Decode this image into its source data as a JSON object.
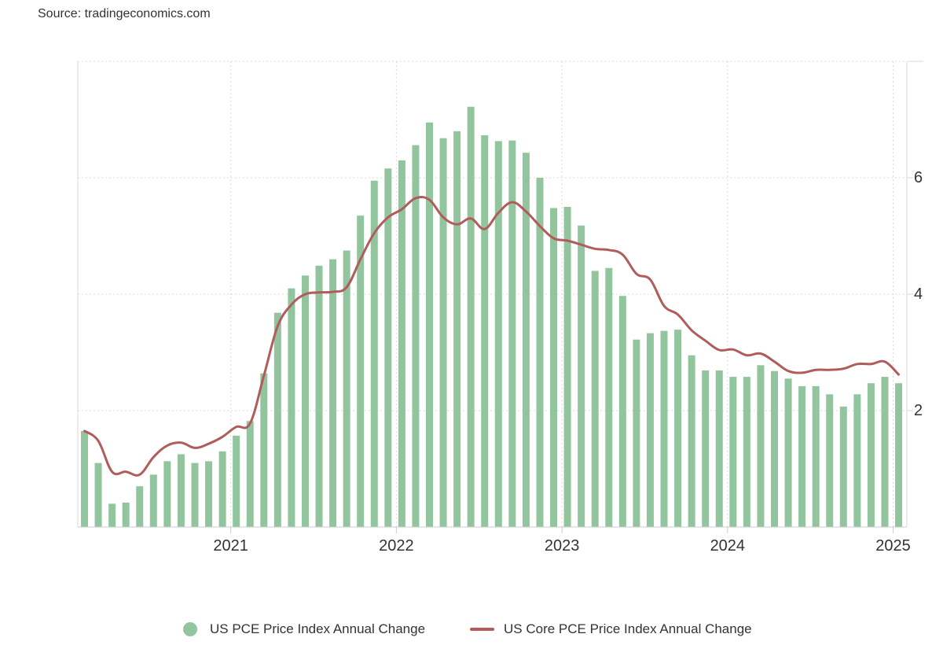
{
  "source": "Source: tradingeconomics.com",
  "colors": {
    "pce": "#92c59d",
    "core": "#b05c5c",
    "grid": "#d9d9d9",
    "axis": "#cccccc"
  },
  "legend": {
    "pce_label": "US PCE Price Index Annual Change",
    "core_label": "US Core PCE Price Index Annual Change"
  },
  "chart_data": {
    "type": "bar",
    "title": "",
    "xlabel": "",
    "ylabel": "",
    "ylim": [
      0,
      8
    ],
    "grid": true,
    "legend_position": "bottom",
    "x_ticks": [
      "2021",
      "2022",
      "2023",
      "2024",
      "2025"
    ],
    "y_ticks": [
      "2",
      "4",
      "6"
    ],
    "categories": [
      "2020-02",
      "2020-03",
      "2020-04",
      "2020-05",
      "2020-06",
      "2020-07",
      "2020-08",
      "2020-09",
      "2020-10",
      "2020-11",
      "2020-12",
      "2021-01",
      "2021-02",
      "2021-03",
      "2021-04",
      "2021-05",
      "2021-06",
      "2021-07",
      "2021-08",
      "2021-09",
      "2021-10",
      "2021-11",
      "2021-12",
      "2022-01",
      "2022-02",
      "2022-03",
      "2022-04",
      "2022-05",
      "2022-06",
      "2022-07",
      "2022-08",
      "2022-09",
      "2022-10",
      "2022-11",
      "2022-12",
      "2023-01",
      "2023-02",
      "2023-03",
      "2023-04",
      "2023-05",
      "2023-06",
      "2023-07",
      "2023-08",
      "2023-09",
      "2023-10",
      "2023-11",
      "2023-12",
      "2024-01",
      "2024-02",
      "2024-03",
      "2024-04",
      "2024-05",
      "2024-06",
      "2024-07",
      "2024-08",
      "2024-09",
      "2024-10",
      "2024-11",
      "2024-12",
      "2025-01"
    ],
    "series": [
      {
        "name": "US PCE Price Index Annual Change",
        "type": "bar",
        "values": [
          1.65,
          1.1,
          0.4,
          0.42,
          0.7,
          0.9,
          1.13,
          1.25,
          1.1,
          1.13,
          1.3,
          1.57,
          1.82,
          2.64,
          3.68,
          4.1,
          4.32,
          4.49,
          4.6,
          4.75,
          5.35,
          5.95,
          6.16,
          6.3,
          6.56,
          6.95,
          6.68,
          6.8,
          7.22,
          6.73,
          6.63,
          6.64,
          6.43,
          6.0,
          5.48,
          5.5,
          5.18,
          4.4,
          4.45,
          3.97,
          3.22,
          3.33,
          3.37,
          3.39,
          2.95,
          2.69,
          2.69,
          2.58,
          2.58,
          2.78,
          2.68,
          2.55,
          2.42,
          2.42,
          2.28,
          2.07,
          2.28,
          2.47,
          2.58,
          2.47
        ]
      },
      {
        "name": "US Core PCE Price Index Annual Change",
        "type": "line",
        "values": [
          1.65,
          1.48,
          0.95,
          0.95,
          0.9,
          1.2,
          1.4,
          1.45,
          1.36,
          1.43,
          1.55,
          1.72,
          1.78,
          2.6,
          3.45,
          3.82,
          4.0,
          4.03,
          4.04,
          4.12,
          4.6,
          5.05,
          5.32,
          5.46,
          5.65,
          5.62,
          5.32,
          5.2,
          5.3,
          5.12,
          5.4,
          5.58,
          5.42,
          5.17,
          4.96,
          4.92,
          4.85,
          4.78,
          4.76,
          4.68,
          4.35,
          4.25,
          3.8,
          3.65,
          3.38,
          3.2,
          3.04,
          3.05,
          2.95,
          2.98,
          2.84,
          2.68,
          2.65,
          2.7,
          2.7,
          2.72,
          2.8,
          2.8,
          2.84,
          2.62
        ]
      }
    ]
  }
}
